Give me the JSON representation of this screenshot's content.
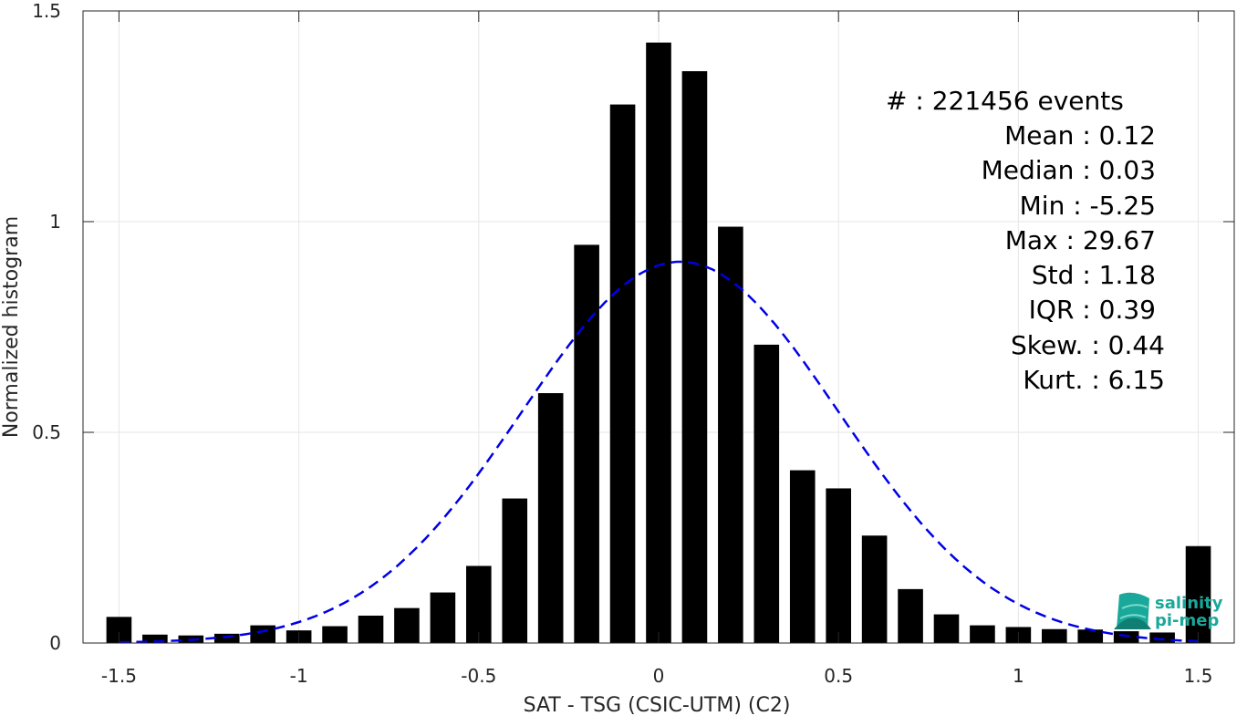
{
  "chart_data": {
    "type": "bar",
    "xlabel": "SAT - TSG (CSIC-UTM) (C2)",
    "ylabel": "Normalized histogram",
    "xlim": [
      -1.6,
      1.6
    ],
    "ylim": [
      0,
      1.5
    ],
    "xticks": [
      -1.5,
      -1,
      -0.5,
      0,
      0.5,
      1,
      1.5
    ],
    "xtick_labels": [
      "-1.5",
      "-1",
      "-0.5",
      "0",
      "0.5",
      "1",
      "1.5"
    ],
    "yticks": [
      0,
      0.5,
      1,
      1.5
    ],
    "ytick_labels": [
      "0",
      "0.5",
      "1",
      "1.5"
    ],
    "grid": true,
    "bar_width": 0.07,
    "bar_color": "#000000",
    "x": [
      -1.5,
      -1.4,
      -1.3,
      -1.2,
      -1.1,
      -1.0,
      -0.9,
      -0.8,
      -0.7,
      -0.6,
      -0.5,
      -0.4,
      -0.3,
      -0.2,
      -0.1,
      0.0,
      0.1,
      0.2,
      0.3,
      0.4,
      0.5,
      0.6,
      0.7,
      0.8,
      0.9,
      1.0,
      1.1,
      1.2,
      1.3,
      1.4,
      1.5
    ],
    "values": [
      0.062,
      0.02,
      0.018,
      0.022,
      0.042,
      0.03,
      0.04,
      0.065,
      0.083,
      0.12,
      0.183,
      0.343,
      0.593,
      0.945,
      1.278,
      1.425,
      1.357,
      0.988,
      0.708,
      0.41,
      0.367,
      0.255,
      0.128,
      0.068,
      0.042,
      0.038,
      0.033,
      0.032,
      0.028,
      0.025,
      0.23
    ],
    "fit": {
      "style": "dashed",
      "color": "#0000e6",
      "mean": 0.06,
      "std": 0.44,
      "peak": 0.905,
      "x_range": [
        -1.5,
        1.5
      ]
    }
  },
  "stats": [
    {
      "label": "#  : 221456 events"
    },
    {
      "label": "Mean : 0.12"
    },
    {
      "label": "Median : 0.03"
    },
    {
      "label": "Min : -5.25"
    },
    {
      "label": "Max : 29.67"
    },
    {
      "label": "Std : 1.18"
    },
    {
      "label": "IQR : 0.39"
    },
    {
      "label": "Skew. : 0.44"
    },
    {
      "label": "Kurt. : 6.15"
    }
  ],
  "logo": {
    "line1": "salinity",
    "line2": "pi-mep",
    "color": "#1aa89a"
  }
}
